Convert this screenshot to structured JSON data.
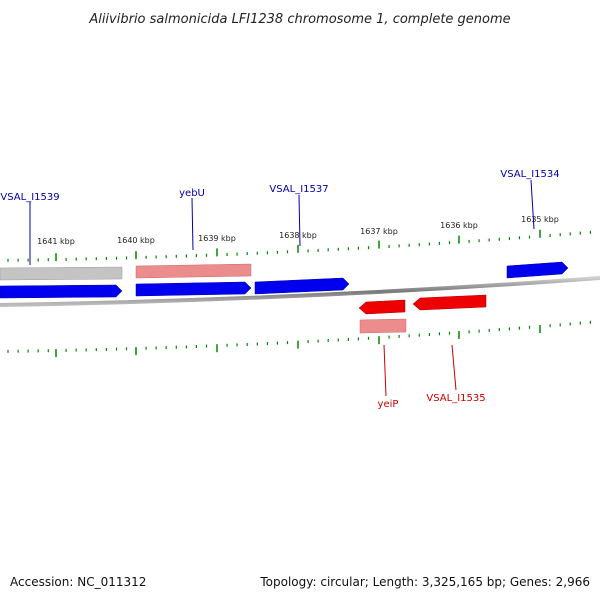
{
  "title": "Aliivibrio salmonicida LFI1238 chromosome 1, complete genome",
  "accession": "Accession: NC_011312",
  "summary": "Topology: circular; Length: 3,325,165 bp; Genes: 2,966",
  "colors": {
    "forward_gene": "#0000ee",
    "reverse_gene": "#ee0000",
    "forward_cds": "#e88080",
    "forward_pseudo": "#bbbbbb",
    "reverse_cds": "#e88080",
    "backbone": "#888888",
    "tick": "#008800",
    "forward_label": "#0000aa",
    "reverse_label": "#cc0000"
  },
  "ticks": [
    "1641 kbp",
    "1640 kbp",
    "1639 kbp",
    "1638 kbp",
    "1637 kbp",
    "1636 kbp",
    "1635 kbp"
  ],
  "forward_genes": [
    {
      "name": "VSAL_I1539"
    },
    {
      "name": "yebU"
    },
    {
      "name": "VSAL_I1537"
    },
    {
      "name": "VSAL_I1534"
    }
  ],
  "reverse_genes": [
    {
      "name": "yeiP"
    },
    {
      "name": "VSAL_I1535"
    }
  ]
}
